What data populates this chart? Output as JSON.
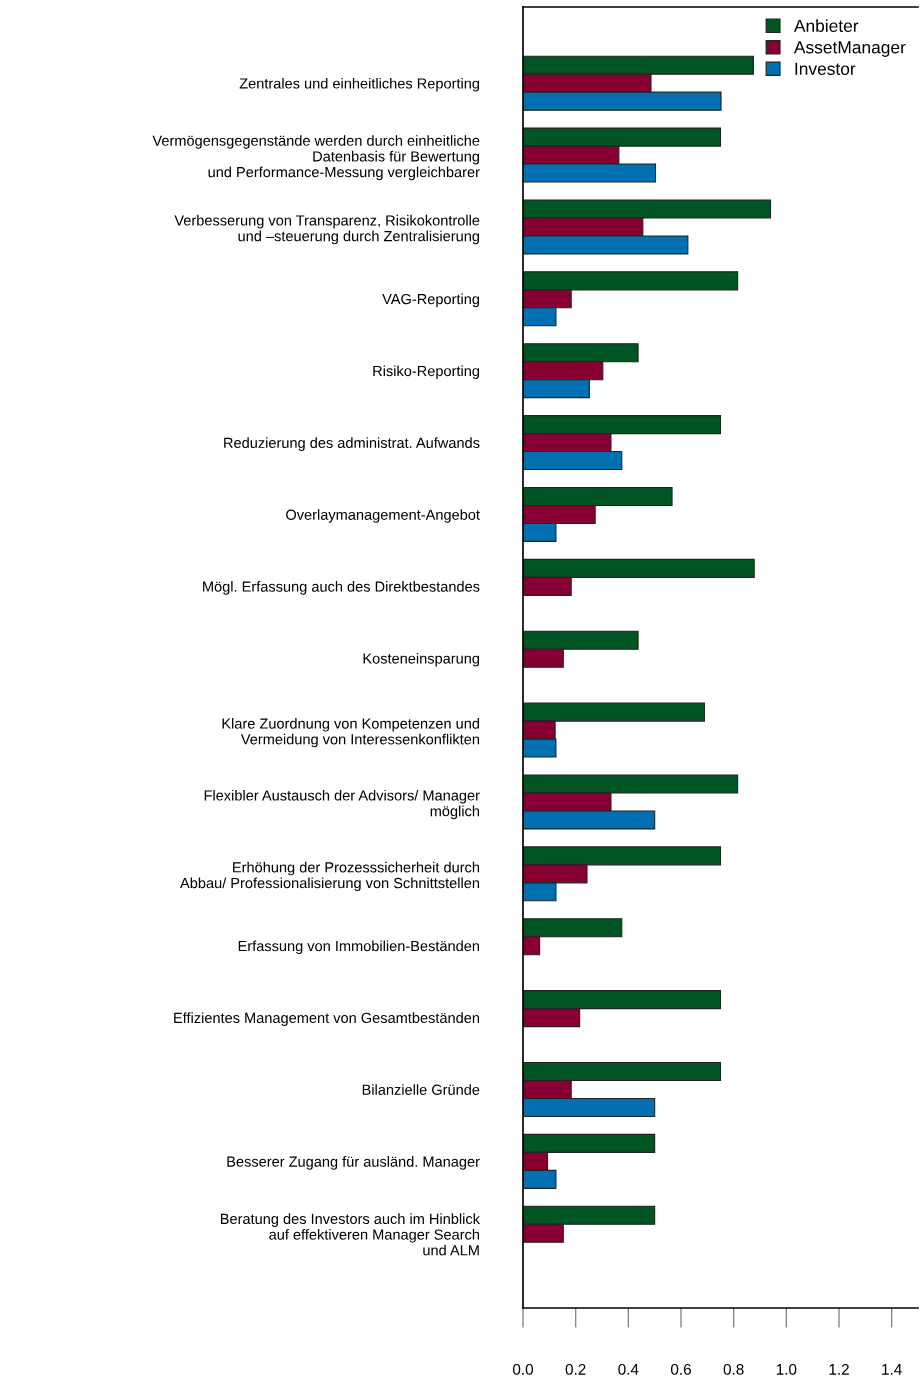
{
  "chart_data": {
    "type": "bar",
    "orientation": "horizontal",
    "categories": [
      "Zentrales und einheitliches Reporting",
      "Vermögensgegenstände werden durch einheitliche\nDatenbasis für Bewertung\nund Performance-Messung vergleichbarer",
      "Verbesserung von Transparenz, Risikokontrolle\nund –steuerung durch Zentralisierung",
      "VAG-Reporting",
      "Risiko-Reporting",
      "Reduzierung des administrat. Aufwands",
      "Overlaymanagement-Angebot",
      "Mögl. Erfassung auch des Direktbestandes",
      "Kosteneinsparung",
      "Klare Zuordnung von Kompetenzen und\nVermeidung von Interessenkonflikten",
      "Flexibler Austausch der Advisors/ Manager\nmöglich",
      "Erhöhung der Prozesssicherheit durch\nAbbau/ Professionalisierung von Schnittstellen",
      "Erfassung von Immobilien-Beständen",
      "Effizientes Management von Gesamtbeständen",
      "Bilanzielle Gründe",
      "Besserer Zugang für ausländ. Manager",
      "Beratung des Investors auch im Hinblick\nauf effektiveren Manager Search\nund ALM"
    ],
    "series": [
      {
        "name": "Anbieter",
        "color": "#005522",
        "values": [
          0.875,
          0.75,
          0.94,
          0.815,
          0.437,
          0.75,
          0.566,
          0.878,
          0.437,
          0.689,
          0.815,
          0.75,
          0.375,
          0.75,
          0.75,
          0.5,
          0.5
        ]
      },
      {
        "name": "AssetManager",
        "color": "#880033",
        "values": [
          0.486,
          0.364,
          0.455,
          0.183,
          0.303,
          0.334,
          0.274,
          0.183,
          0.153,
          0.122,
          0.334,
          0.243,
          0.063,
          0.215,
          0.183,
          0.093,
          0.153
        ]
      },
      {
        "name": "Investor",
        "color": "#0070b0",
        "values": [
          0.752,
          0.503,
          0.626,
          0.125,
          0.252,
          0.375,
          0.125,
          null,
          null,
          0.125,
          0.5,
          0.125,
          null,
          null,
          0.5,
          0.125,
          null
        ]
      }
    ],
    "xlim": [
      0,
      1.5
    ],
    "xticks": [
      {
        "value": 0,
        "label": "0.0"
      },
      0.2,
      0.4,
      0.6,
      0.8,
      {
        "value": 1,
        "label": "1.0"
      },
      1.2,
      1.4
    ],
    "legend": "top right",
    "grid": false
  }
}
